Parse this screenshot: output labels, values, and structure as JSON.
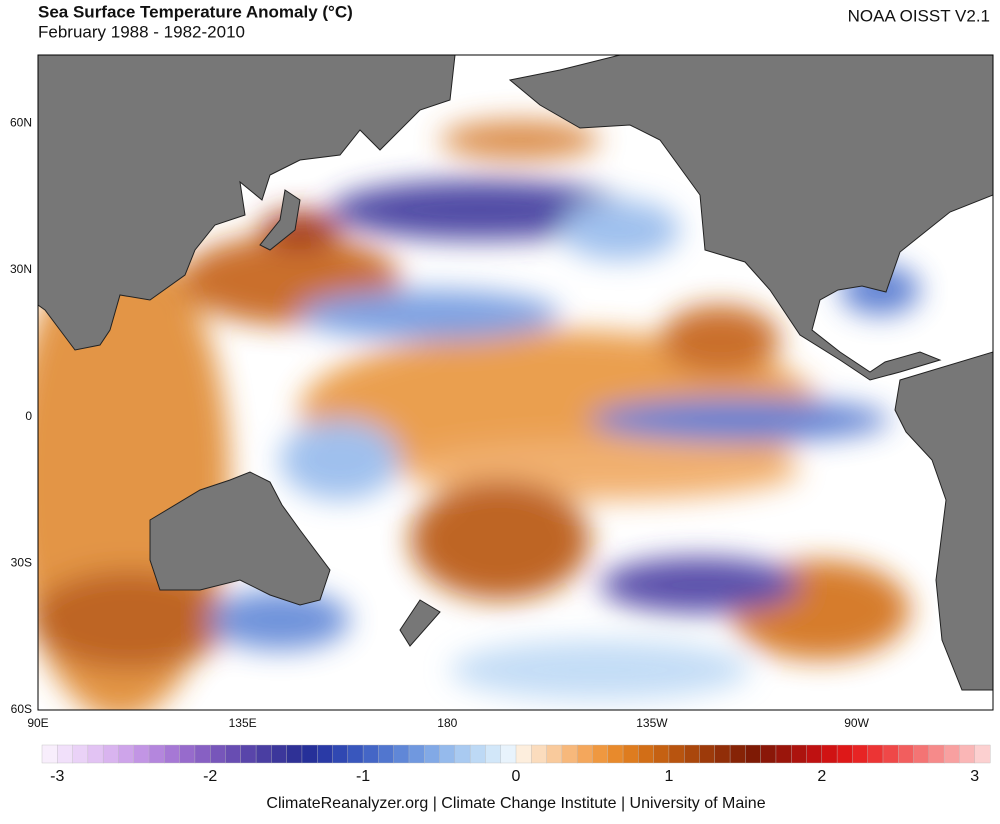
{
  "header": {
    "title": "Sea Surface Temperature Anomaly (°C)",
    "subtitle": "February 1988 - 1982-2010",
    "dataset": "NOAA OISST V2.1"
  },
  "map": {
    "lat_range": [
      -60,
      74
    ],
    "lon_range": [
      90,
      300
    ],
    "lat_labels": [
      {
        "value": 60,
        "label": "60N"
      },
      {
        "value": 30,
        "label": "30N"
      },
      {
        "value": 0,
        "label": "0"
      },
      {
        "value": -30,
        "label": "30S"
      },
      {
        "value": -60,
        "label": "60S"
      }
    ],
    "lon_labels": [
      {
        "value": 90,
        "label": "90E"
      },
      {
        "value": 135,
        "label": "135E"
      },
      {
        "value": 180,
        "label": "180"
      },
      {
        "value": 225,
        "label": "135W"
      },
      {
        "value": 270,
        "label": "90W"
      }
    ]
  },
  "colorbar": {
    "lim": [
      -3.1,
      3.1
    ],
    "ticks": [
      -3,
      -2,
      -1,
      0,
      1,
      2,
      3
    ],
    "colors": [
      "#f8eefc",
      "#f1e0fa",
      "#ead2f7",
      "#e2c3f3",
      "#d9b4ef",
      "#cea4ea",
      "#c295e4",
      "#b486dd",
      "#a678d5",
      "#976bcc",
      "#8760c3",
      "#7756ba",
      "#684db2",
      "#5945aa",
      "#4a3ea2",
      "#3c379b",
      "#2f3196",
      "#263099",
      "#2a3aa6",
      "#3048b2",
      "#3957bd",
      "#4466c6",
      "#5176cf",
      "#6087d7",
      "#7098df",
      "#82a9e6",
      "#95baec",
      "#a9caf1",
      "#bdd9f5",
      "#d2e7f9",
      "#e8f3fc",
      "#fdeedd",
      "#fbdcbd",
      "#f9ca9c",
      "#f7b87b",
      "#f4a75c",
      "#ef9840",
      "#e88a2c",
      "#de7c1f",
      "#d26e17",
      "#c56112",
      "#b8540f",
      "#aa470c",
      "#9d3a0a",
      "#912e08",
      "#862306",
      "#7e1a05",
      "#8a1708",
      "#9a150b",
      "#ac130e",
      "#bf1111",
      "#d01313",
      "#de1818",
      "#e72424",
      "#ec3434",
      "#ef4848",
      "#f25e5e",
      "#f47474",
      "#f68a8a",
      "#f8a0a0",
      "#fab6b6",
      "#fcd0d0"
    ]
  },
  "footer": "ClimateReanalyzer.org | Climate Change Institute | University of Maine"
}
